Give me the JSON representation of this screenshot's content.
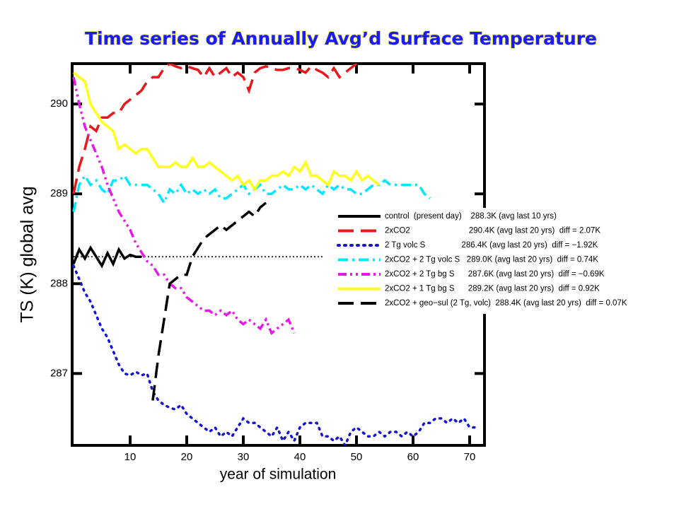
{
  "chart_data": {
    "type": "line",
    "title": "Time series of Annually Avg’d Surface Temperature",
    "x_label": "year of simulation",
    "y_label": "TS (K) global avg",
    "xlim": [
      0,
      72.5
    ],
    "ylim": [
      286.2,
      290.45
    ],
    "xticks": [
      10,
      20,
      30,
      40,
      50,
      60,
      70
    ],
    "yticks": [
      287,
      288,
      289,
      290
    ],
    "grid": false,
    "legend": "right",
    "reference_line": {
      "value": 288.3,
      "x_end": 44
    },
    "x": [
      0,
      1,
      2,
      3,
      4,
      5,
      6,
      7,
      8,
      9,
      10,
      11,
      12,
      13,
      14,
      15,
      16,
      17,
      18,
      19,
      20,
      21,
      22,
      23,
      24,
      25,
      26,
      27,
      28,
      29,
      30,
      31,
      32,
      33,
      34,
      35,
      36,
      37,
      38,
      39,
      40,
      41,
      42,
      43,
      44,
      45,
      46,
      47,
      48,
      49,
      50,
      51,
      52,
      53,
      54,
      55,
      56,
      57,
      58,
      59,
      60,
      61,
      62,
      63,
      64,
      65,
      66,
      67,
      68,
      69,
      70,
      71
    ],
    "series": [
      {
        "name": "control  (present day)    288.3K (avg last 10 yrs)",
        "color": "#000000",
        "style": "solid",
        "values": [
          288.22,
          288.38,
          288.28,
          288.4,
          288.3,
          288.2,
          288.34,
          288.22,
          288.38,
          288.28,
          288.32,
          288.3,
          288.3,
          null,
          null,
          null,
          null,
          null,
          null,
          null,
          null,
          null,
          null,
          null,
          null,
          null,
          null,
          null,
          null,
          null,
          null,
          null,
          null,
          null,
          null,
          null,
          null,
          null,
          null,
          null,
          null,
          null,
          null,
          null,
          null,
          null,
          null,
          null,
          null,
          null,
          null,
          null,
          null,
          null,
          null,
          null,
          null,
          null,
          null,
          null,
          null,
          null,
          null,
          null,
          null,
          null,
          null,
          null,
          null,
          null,
          null,
          null
        ]
      },
      {
        "name": "2xCO2                          290.4K (avg last 20 yrs)  diff = 2.07K",
        "color": "#e8171c",
        "style": "dashed",
        "values": [
          289.0,
          289.3,
          289.5,
          289.75,
          289.7,
          289.85,
          289.85,
          289.9,
          289.9,
          290.0,
          290.05,
          290.1,
          290.15,
          290.25,
          290.3,
          290.3,
          290.4,
          290.45,
          290.42,
          290.4,
          290.42,
          290.4,
          290.38,
          290.3,
          290.4,
          290.3,
          290.35,
          290.4,
          290.3,
          290.35,
          290.3,
          290.15,
          290.35,
          290.4,
          290.42,
          290.4,
          290.38,
          290.38,
          290.4,
          290.4,
          290.38,
          290.35,
          290.42,
          290.38,
          290.35,
          290.3,
          290.4,
          290.3,
          290.35,
          290.4,
          290.45,
          null,
          null,
          null,
          null,
          null,
          null,
          null,
          null,
          null,
          null,
          null,
          null,
          null,
          null,
          null,
          null,
          null,
          null,
          null,
          null,
          null
        ]
      },
      {
        "name": "2 Tg volc S                286.4K (avg last 20 yrs)  diff = −1.92K",
        "color": "#1414d2",
        "style": "dotted",
        "values": [
          288.2,
          288.05,
          287.9,
          287.8,
          287.65,
          287.5,
          287.4,
          287.25,
          287.1,
          287.0,
          286.98,
          287.02,
          286.98,
          287.0,
          286.8,
          286.7,
          286.65,
          286.62,
          286.6,
          286.65,
          286.55,
          286.5,
          286.45,
          286.4,
          286.35,
          286.4,
          286.3,
          286.35,
          286.3,
          286.4,
          286.5,
          286.45,
          286.45,
          286.4,
          286.35,
          286.3,
          286.4,
          286.25,
          286.35,
          286.25,
          286.4,
          286.45,
          286.45,
          286.45,
          286.3,
          286.3,
          286.25,
          286.3,
          286.2,
          286.35,
          286.4,
          286.35,
          286.3,
          286.3,
          286.35,
          286.3,
          286.35,
          286.35,
          286.3,
          286.35,
          286.3,
          286.35,
          286.45,
          286.45,
          286.5,
          286.5,
          286.45,
          286.5,
          286.45,
          286.5,
          286.4,
          286.4
        ]
      },
      {
        "name": "2xCO2 + 2 Tg volc S   289.0K (avg last 20 yrs)  diff = 0.74K",
        "color": "#00e8ff",
        "style": "dashdot",
        "values": [
          288.8,
          289.1,
          289.2,
          289.1,
          289.15,
          289.05,
          289.0,
          289.15,
          289.15,
          289.2,
          289.1,
          289.1,
          289.1,
          289.1,
          289.05,
          289.0,
          288.9,
          289.05,
          289.0,
          289.1,
          289.0,
          289.05,
          289.0,
          289.05,
          289.0,
          289.05,
          288.95,
          288.95,
          289.0,
          289.05,
          289.1,
          289.0,
          289.05,
          289.1,
          289.0,
          289.0,
          289.05,
          289.1,
          289.05,
          289.05,
          289.1,
          289.05,
          289.1,
          289.05,
          289.0,
          289.1,
          289.05,
          289.1,
          289.05,
          289.05,
          289.0,
          289.0,
          289.05,
          289.1,
          289.1,
          289.15,
          289.1,
          289.1,
          289.1,
          289.1,
          289.1,
          289.1,
          289.0,
          288.95,
          null,
          null,
          null,
          null,
          null,
          null,
          null,
          null
        ]
      },
      {
        "name": "2xCO2 + 2 Tg bg S      287.6K (avg last 20 yrs)  diff = −0.69K",
        "color": "#e619e6",
        "style": "dashdotdot",
        "values": [
          290.3,
          290.0,
          289.75,
          289.6,
          289.45,
          289.3,
          289.1,
          288.95,
          288.8,
          288.7,
          288.6,
          288.45,
          288.35,
          288.25,
          288.2,
          288.1,
          288.1,
          288.0,
          287.95,
          287.95,
          287.85,
          287.8,
          287.75,
          287.7,
          287.7,
          287.65,
          287.7,
          287.65,
          287.7,
          287.6,
          287.55,
          287.6,
          287.55,
          287.5,
          287.6,
          287.45,
          287.5,
          287.55,
          287.6,
          287.45,
          null,
          null,
          null,
          null,
          null,
          null,
          null,
          null,
          null,
          null,
          null,
          null,
          null,
          null,
          null,
          null,
          null,
          null,
          null,
          null,
          null,
          null,
          null,
          null,
          null,
          null,
          null,
          null,
          null,
          null,
          null,
          null
        ]
      },
      {
        "name": "2xCO2 + 1 Tg bg S      289.2K (avg last 20 yrs)  diff = 0.92K",
        "color": "#ffff1a",
        "style": "solid",
        "values": [
          290.35,
          290.3,
          290.25,
          290.0,
          289.9,
          289.8,
          289.75,
          289.7,
          289.5,
          289.55,
          289.5,
          289.45,
          289.5,
          289.5,
          289.4,
          289.3,
          289.3,
          289.3,
          289.35,
          289.3,
          289.3,
          289.4,
          289.3,
          289.3,
          289.35,
          289.3,
          289.25,
          289.2,
          289.15,
          289.2,
          289.1,
          289.15,
          289.05,
          289.15,
          289.15,
          289.2,
          289.2,
          289.25,
          289.2,
          289.3,
          289.25,
          289.35,
          289.2,
          289.2,
          289.15,
          289.1,
          289.25,
          289.2,
          289.2,
          289.15,
          289.25,
          289.15,
          289.2,
          289.15,
          289.1,
          null,
          null,
          null,
          null,
          null,
          null,
          null,
          null,
          null,
          null,
          null,
          null,
          null,
          null,
          null,
          null,
          null
        ]
      },
      {
        "name": "2xCO2 + geo−sul (2 Tg, volc)  288.4K (avg last 20 yrs)  diff = 0.07K",
        "color": "#000000",
        "style": "dashed",
        "values": [
          null,
          null,
          null,
          null,
          null,
          null,
          null,
          null,
          null,
          null,
          null,
          null,
          null,
          null,
          286.7,
          287.2,
          287.6,
          288.0,
          288.05,
          288.1,
          288.1,
          288.3,
          288.4,
          288.5,
          288.55,
          288.6,
          288.65,
          288.6,
          288.65,
          288.7,
          288.75,
          288.8,
          288.75,
          288.85,
          288.9,
          null,
          null,
          null,
          null,
          null,
          null,
          null,
          null,
          null,
          null,
          null,
          null,
          null,
          null,
          null,
          null,
          null,
          null,
          null,
          null,
          null,
          null,
          null,
          null,
          null,
          null,
          null,
          null,
          null,
          null,
          null,
          null,
          null,
          null,
          null,
          null,
          null
        ]
      }
    ]
  }
}
